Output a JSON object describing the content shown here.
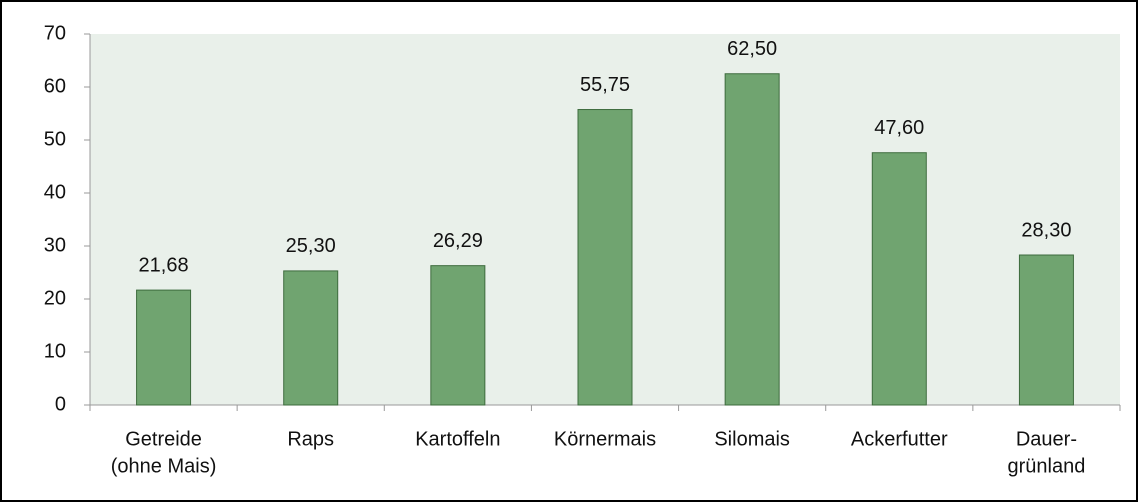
{
  "chart_data": {
    "type": "bar",
    "categories": [
      [
        "Getreide",
        "(ohne Mais)"
      ],
      [
        "Raps"
      ],
      [
        "Kartoffeln"
      ],
      [
        "Körnermais"
      ],
      [
        "Silomais"
      ],
      [
        "Ackerfutter"
      ],
      [
        "Dauer-",
        "grünland"
      ]
    ],
    "values": [
      21.68,
      25.3,
      26.29,
      55.75,
      62.5,
      47.6,
      28.3
    ],
    "value_labels": [
      "21,68",
      "25,30",
      "26,29",
      "55,75",
      "62,50",
      "47,60",
      "28,30"
    ],
    "color": "#70a470",
    "ylim": [
      0,
      70
    ],
    "yticks": [
      0,
      10,
      20,
      30,
      40,
      50,
      60,
      70
    ]
  }
}
